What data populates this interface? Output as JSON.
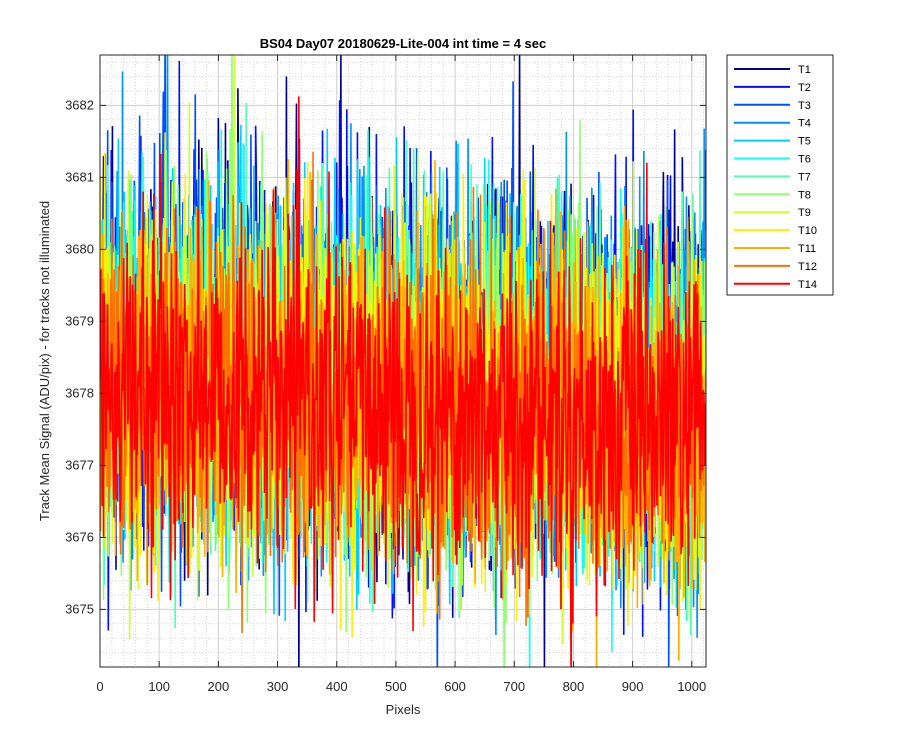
{
  "chart_data": {
    "type": "line",
    "title": "BS04 Day07 20180629-Lite-004 int time = 4 sec",
    "xlabel": "Pixels",
    "ylabel": "Track Mean Signal (ADU/pix) - for tracks not illuminated",
    "xlim": [
      0,
      1024
    ],
    "ylim": [
      3674.2,
      3682.7
    ],
    "xticks": [
      0,
      100,
      200,
      300,
      400,
      500,
      600,
      700,
      800,
      900,
      1000
    ],
    "yticks": [
      3675,
      3676,
      3677,
      3678,
      3679,
      3680,
      3681,
      3682
    ],
    "grid": "major and minor",
    "legend_position": "outside-top-right",
    "x_count": 1024,
    "series": [
      {
        "name": "T1",
        "color": "#00008F",
        "mean": 3678.6,
        "std": 1.3
      },
      {
        "name": "T2",
        "color": "#0010FF",
        "mean": 3678.5,
        "std": 1.3
      },
      {
        "name": "T3",
        "color": "#0050FF",
        "mean": 3678.5,
        "std": 1.25
      },
      {
        "name": "T4",
        "color": "#0090FF",
        "mean": 3678.4,
        "std": 1.25
      },
      {
        "name": "T5",
        "color": "#00CFFF",
        "mean": 3678.4,
        "std": 1.2
      },
      {
        "name": "T6",
        "color": "#10FFEF",
        "mean": 3678.3,
        "std": 1.2
      },
      {
        "name": "T7",
        "color": "#50FFAF",
        "mean": 3678.3,
        "std": 1.2
      },
      {
        "name": "T8",
        "color": "#90FF70",
        "mean": 3678.2,
        "std": 1.2
      },
      {
        "name": "T9",
        "color": "#CFFF30",
        "mean": 3678.2,
        "std": 1.2
      },
      {
        "name": "T10",
        "color": "#FFEF00",
        "mean": 3678.1,
        "std": 1.15
      },
      {
        "name": "T11",
        "color": "#FFB000",
        "mean": 3678.1,
        "std": 1.15
      },
      {
        "name": "T12",
        "color": "#FF7000",
        "mean": 3678.0,
        "std": 1.1
      },
      {
        "name": "T14",
        "color": "#FF0000",
        "mean": 3678.0,
        "std": 1.1
      }
    ]
  }
}
